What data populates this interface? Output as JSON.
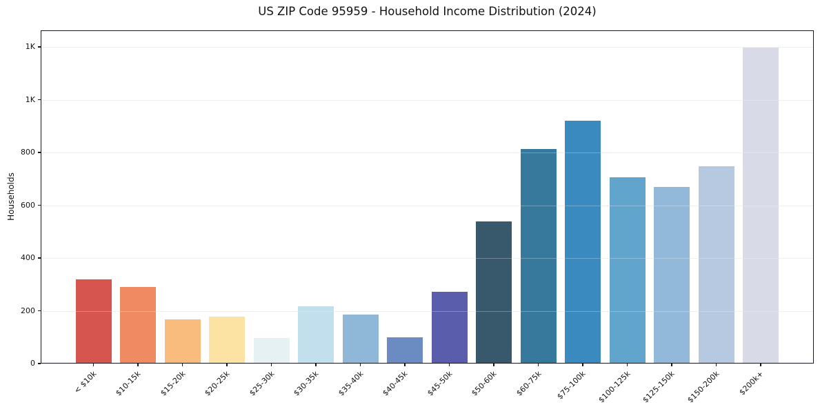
{
  "chart_data": {
    "type": "bar",
    "title": "US ZIP Code 95959 - Household Income Distribution (2024)",
    "xlabel": "",
    "ylabel": "Households",
    "categories": [
      "< $10k",
      "$10-15k",
      "$15-20k",
      "$20-25k",
      "$25-30k",
      "$30-35k",
      "$35-40k",
      "$40-45k",
      "$45-50k",
      "$50-60k",
      "$60-75k",
      "$75-100k",
      "$100-125k",
      "$125-150k",
      "$150-200k",
      "$200k+"
    ],
    "values": [
      318,
      291,
      168,
      178,
      98,
      217,
      186,
      100,
      271,
      539,
      813,
      920,
      706,
      669,
      748,
      1198
    ],
    "bar_colors": [
      "#d6564f",
      "#f08a63",
      "#f9bc7d",
      "#fce3a4",
      "#e6f1f3",
      "#c1dfec",
      "#8fb8d8",
      "#6a8cc3",
      "#5a5dab",
      "#38596c",
      "#36799d",
      "#3a8ac0",
      "#61a4cc",
      "#92b8da",
      "#b7c8e1",
      "#d8dae7"
    ],
    "ylim": [
      0,
      1263
    ],
    "yticks": [
      {
        "value": 0,
        "label": "0"
      },
      {
        "value": 200,
        "label": "200"
      },
      {
        "value": 400,
        "label": "400"
      },
      {
        "value": 600,
        "label": "600"
      },
      {
        "value": 800,
        "label": "800"
      },
      {
        "value": 1000,
        "label": "1K"
      },
      {
        "value": 1200,
        "label": "1K"
      }
    ],
    "grid": "horizontal",
    "legend": "none",
    "x_tick_rotation_deg": 45,
    "grid_color": "#e9e9e9",
    "spine_color": "#15151f"
  }
}
